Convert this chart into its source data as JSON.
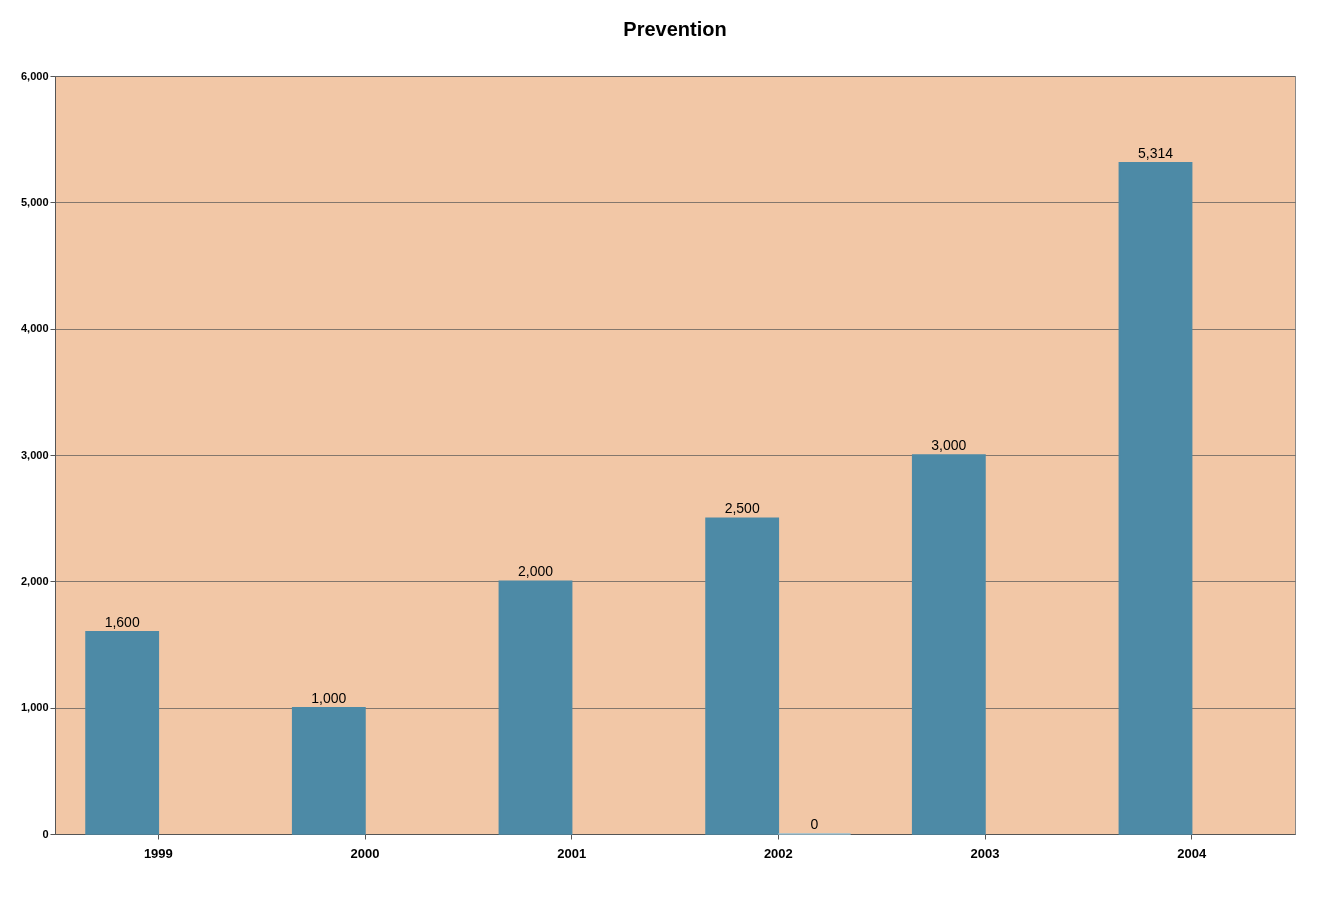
{
  "chart_data": {
    "type": "bar",
    "title": "Prevention",
    "categories": [
      "1999",
      "2000",
      "2001",
      "2002",
      "2003",
      "2004"
    ],
    "series": [
      {
        "color": "#4d8aa6",
        "values": [
          1600,
          1000,
          2000,
          2500,
          3000,
          5314
        ],
        "value_labels": [
          "1,600",
          "1,000",
          "2,000",
          "2,500",
          "3,000",
          "5,314"
        ]
      },
      {
        "color": "#9bc3d6",
        "values": [
          null,
          null,
          null,
          0,
          null,
          null
        ],
        "value_labels": [
          null,
          null,
          null,
          "0",
          null,
          null
        ]
      }
    ],
    "ylim": [
      0,
      6000
    ],
    "yticks": [
      0,
      {
        "value": 1000,
        "label": "1,000"
      },
      {
        "value": 2000,
        "label": "2,000"
      },
      {
        "value": 3000,
        "label": "3,000"
      },
      {
        "value": 4000,
        "label": "4,000"
      },
      {
        "value": 5000,
        "label": "5,000"
      },
      {
        "value": 6000,
        "label": "6,000"
      }
    ],
    "grid": "y"
  }
}
